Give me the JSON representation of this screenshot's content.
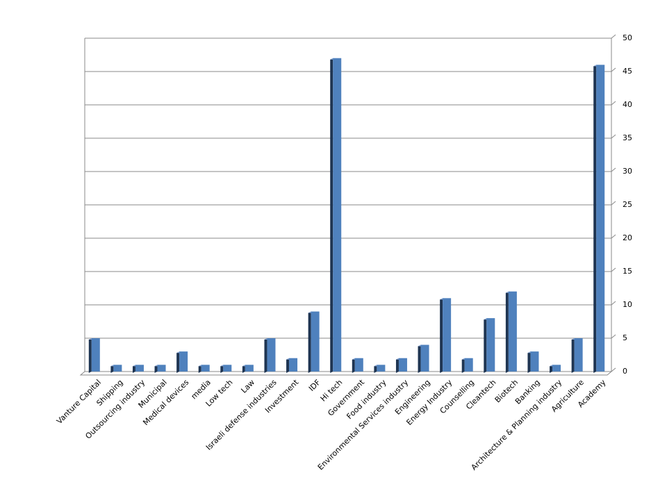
{
  "chart_data": {
    "type": "bar",
    "categories": [
      "Vanture Capital",
      "Shipping",
      "Outsourcing industry",
      "Municipal",
      "Medical devices",
      "media",
      "Low tech",
      "Law",
      "Israeli defense industries",
      "Investment",
      "IDF",
      "Hi tech",
      "Government",
      "Food industry",
      "Environmental Services industry",
      "Engineering",
      "Energy Industry",
      "Counselling",
      "Cleantech",
      "Biotech",
      "Banking",
      "Architecture & Planning industry",
      "Agriculture",
      "Academy"
    ],
    "values": [
      5,
      1,
      1,
      1,
      3,
      1,
      1,
      1,
      5,
      2,
      9,
      47,
      2,
      1,
      2,
      4,
      11,
      2,
      8,
      12,
      3,
      1,
      5,
      46
    ],
    "color": "#4f81bd",
    "ylim": [
      0,
      50
    ],
    "yticks": [
      0,
      5,
      10,
      15,
      20,
      25,
      30,
      35,
      40,
      45,
      50
    ],
    "grid": true
  }
}
